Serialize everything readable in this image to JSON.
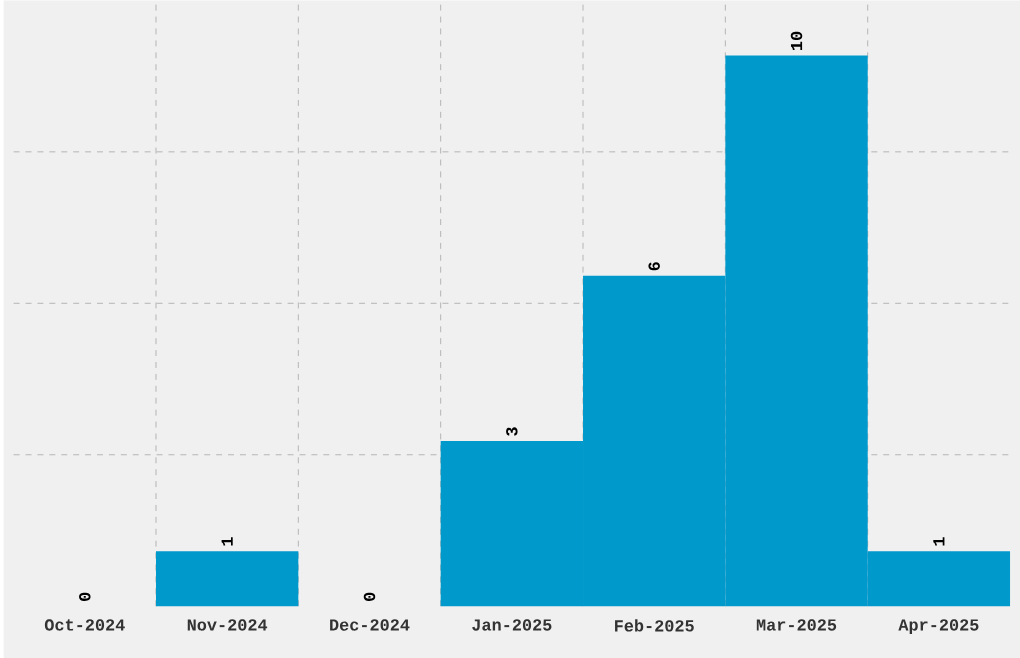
{
  "chart_data": {
    "type": "bar",
    "categories": [
      "Oct-2024",
      "Nov-2024",
      "Dec-2024",
      "Jan-2025",
      "Feb-2025",
      "Mar-2025",
      "Apr-2025"
    ],
    "values": [
      0,
      1,
      0,
      3,
      6,
      10,
      1
    ],
    "color": "#0099cc",
    "ylim": [
      0,
      11
    ],
    "yticks": [
      {
        "value": 2.75,
        "label": null
      },
      {
        "value": 5.5,
        "label": null
      },
      {
        "value": 8.25,
        "label": null
      }
    ],
    "grid": true,
    "data_labels": true,
    "tick_labels": "x"
  }
}
